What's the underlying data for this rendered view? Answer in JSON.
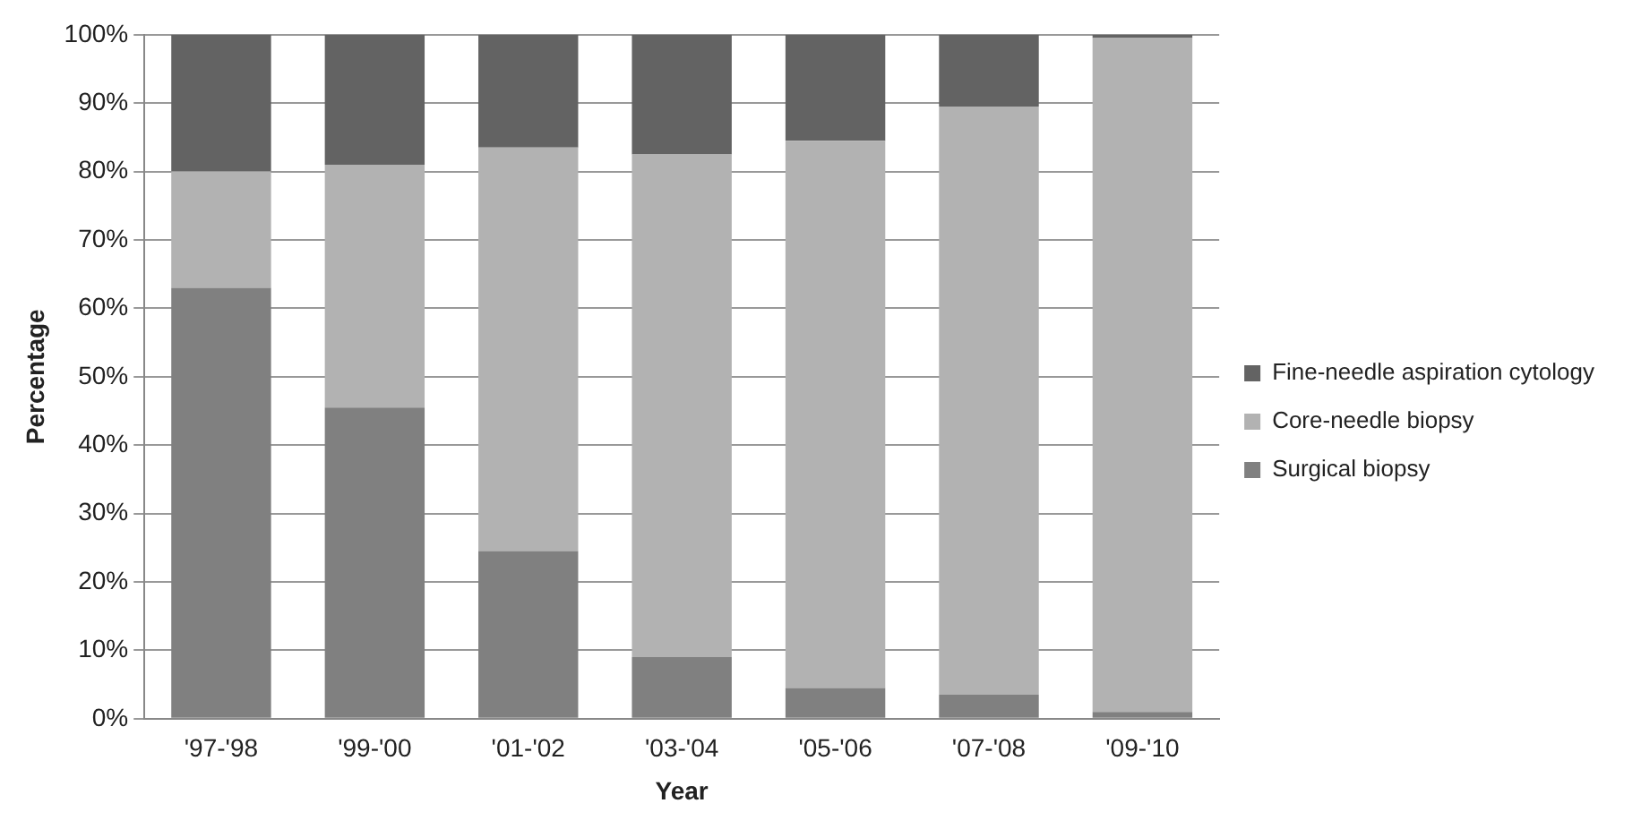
{
  "chart_data": {
    "type": "bar",
    "stacked": true,
    "xlabel": "Year",
    "ylabel": "Percentage",
    "categories": [
      "'97-'98",
      "'99-'00",
      "'01-'02",
      "'03-'04",
      "'05-'06",
      "'07-'08",
      "'09-'10"
    ],
    "series": [
      {
        "name": "Surgical biopsy",
        "color": "#808080",
        "values": [
          63,
          45.5,
          24.5,
          9,
          4.5,
          3.5,
          1
        ]
      },
      {
        "name": "Core-needle biopsy",
        "color": "#b2b2b2",
        "values": [
          17,
          35.5,
          59,
          73.5,
          80,
          86,
          98.5
        ]
      },
      {
        "name": "Fine-needle aspiration cytology",
        "color": "#636363",
        "values": [
          20,
          19,
          16.5,
          17.5,
          15.5,
          10.5,
          0.5
        ]
      }
    ],
    "ylim": [
      0,
      100
    ],
    "yticks": [
      {
        "value": 0,
        "label": "0%"
      },
      {
        "value": 10,
        "label": "10%"
      },
      {
        "value": 20,
        "label": "20%"
      },
      {
        "value": 30,
        "label": "30%"
      },
      {
        "value": 40,
        "label": "40%"
      },
      {
        "value": 50,
        "label": "50%"
      },
      {
        "value": 60,
        "label": "60%"
      },
      {
        "value": 70,
        "label": "70%"
      },
      {
        "value": 80,
        "label": "80%"
      },
      {
        "value": 90,
        "label": "90%"
      },
      {
        "value": 100,
        "label": "100%"
      }
    ],
    "grid": "y",
    "legend": "right"
  }
}
